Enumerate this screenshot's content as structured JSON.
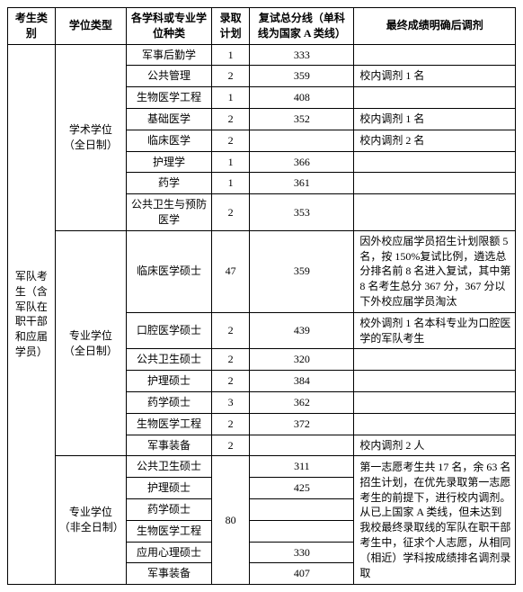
{
  "headers": {
    "category": "考生类别",
    "degree_type": "学位类型",
    "subject": "各学科或专业学位种类",
    "plan": "录取计划",
    "score": "复试总分线（单科线为国家 A 类线）",
    "note": "最终成绩明确后调剂"
  },
  "category_label": "军队考生（含军队在职干部和应届学员）",
  "degree_groups": [
    {
      "label": "学术学位（全日制）",
      "rows": [
        {
          "subj": "军事后勤学",
          "plan": "1",
          "score": "333",
          "note": ""
        },
        {
          "subj": "公共管理",
          "plan": "2",
          "score": "359",
          "note": "校内调剂 1 名"
        },
        {
          "subj": "生物医学工程",
          "plan": "1",
          "score": "408",
          "note": ""
        },
        {
          "subj": "基础医学",
          "plan": "2",
          "score": "352",
          "note": "校内调剂 1 名"
        },
        {
          "subj": "临床医学",
          "plan": "2",
          "score": "",
          "note": "校内调剂 2 名"
        },
        {
          "subj": "护理学",
          "plan": "1",
          "score": "366",
          "note": ""
        },
        {
          "subj": "药学",
          "plan": "1",
          "score": "361",
          "note": ""
        },
        {
          "subj": "公共卫生与预防医学",
          "plan": "2",
          "score": "353",
          "note": ""
        }
      ]
    },
    {
      "label": "专业学位（全日制）",
      "rows": [
        {
          "subj": "临床医学硕士",
          "plan": "47",
          "score": "359",
          "note": "因外校应届学员招生计划限额 5 名，按 150%复试比例，遴选总分排名前 8 名进入复试，其中第 8 名考生总分 367 分，367 分以下外校应届学员淘汰"
        },
        {
          "subj": "口腔医学硕士",
          "plan": "2",
          "score": "439",
          "note": "校外调剂 1 名本科专业为口腔医学的军队考生"
        },
        {
          "subj": "公共卫生硕士",
          "plan": "2",
          "score": "320",
          "note": ""
        },
        {
          "subj": "护理硕士",
          "plan": "2",
          "score": "384",
          "note": ""
        },
        {
          "subj": "药学硕士",
          "plan": "3",
          "score": "362",
          "note": ""
        },
        {
          "subj": "生物医学工程",
          "plan": "2",
          "score": "372",
          "note": ""
        },
        {
          "subj": "军事装备",
          "plan": "2",
          "score": "",
          "note": "校内调剂 2 人"
        }
      ]
    },
    {
      "label": "专业学位（非全日制）",
      "plan_merged": "80",
      "note_merged": "第一志愿考生共 17 名，余 63 名招生计划，在优先录取第一志愿考生的前提下，进行校内调剂。从已上国家 A 类线，但未达到我校最终录取线的军队在职干部考生中，征求个人志愿，从相同（相近）学科按成绩排名调剂录取",
      "rows": [
        {
          "subj": "公共卫生硕士",
          "score": "311"
        },
        {
          "subj": "护理硕士",
          "score": "425"
        },
        {
          "subj": "药学硕士",
          "score": ""
        },
        {
          "subj": "生物医学工程",
          "score": ""
        },
        {
          "subj": "应用心理硕士",
          "score": "330"
        },
        {
          "subj": "军事装备",
          "score": "407"
        }
      ]
    }
  ]
}
